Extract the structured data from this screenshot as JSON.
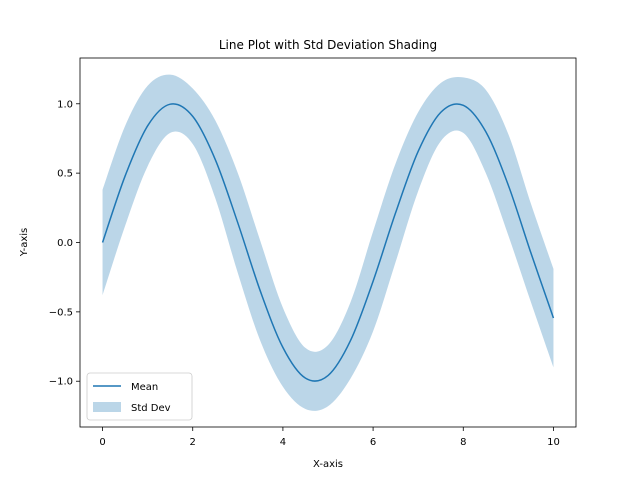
{
  "chart_data": {
    "type": "line",
    "title": "Line Plot with Std Deviation Shading",
    "xlabel": "X-axis",
    "ylabel": "Y-axis",
    "xlim": [
      -0.5,
      10.5
    ],
    "ylim": [
      -1.33,
      1.33
    ],
    "x_ticks": [
      0,
      2,
      4,
      6,
      8,
      10
    ],
    "x_tick_labels": [
      "0",
      "2",
      "4",
      "6",
      "8",
      "10"
    ],
    "y_ticks": [
      -1.0,
      -0.5,
      0.0,
      0.5,
      1.0
    ],
    "y_tick_labels": [
      "−1.0",
      "−0.5",
      "0.0",
      "0.5",
      "1.0"
    ],
    "grid": false,
    "legend_position": "lower-left",
    "series": [
      {
        "name": "Mean",
        "kind": "line",
        "color": "#1f77b4",
        "x": [
          0,
          0.5,
          1,
          1.5,
          2,
          2.5,
          3,
          3.5,
          4,
          4.5,
          5,
          5.5,
          6,
          6.5,
          7,
          7.5,
          8,
          8.5,
          9,
          9.5,
          10
        ],
        "values": [
          0.0,
          0.479,
          0.841,
          0.997,
          0.909,
          0.598,
          0.141,
          -0.351,
          -0.757,
          -0.978,
          -0.959,
          -0.706,
          -0.279,
          0.215,
          0.657,
          0.938,
          0.989,
          0.798,
          0.412,
          -0.075,
          -0.544
        ]
      },
      {
        "name": "Std Dev",
        "kind": "band",
        "color": "#1f77b4",
        "opacity": 0.3,
        "x": [
          0,
          0.5,
          1,
          1.5,
          2,
          2.5,
          3,
          3.5,
          4,
          4.5,
          5,
          5.5,
          6,
          6.5,
          7,
          7.5,
          8,
          8.5,
          9,
          9.5,
          10
        ],
        "lower": [
          -0.38,
          0.12,
          0.55,
          0.79,
          0.71,
          0.32,
          -0.22,
          -0.71,
          -1.04,
          -1.2,
          -1.18,
          -0.98,
          -0.64,
          -0.14,
          0.37,
          0.73,
          0.79,
          0.5,
          0.05,
          -0.43,
          -0.9
        ],
        "upper": [
          0.38,
          0.84,
          1.13,
          1.21,
          1.11,
          0.88,
          0.5,
          0.01,
          -0.47,
          -0.76,
          -0.74,
          -0.43,
          0.08,
          0.57,
          0.94,
          1.15,
          1.19,
          1.1,
          0.78,
          0.28,
          -0.19
        ]
      }
    ]
  }
}
